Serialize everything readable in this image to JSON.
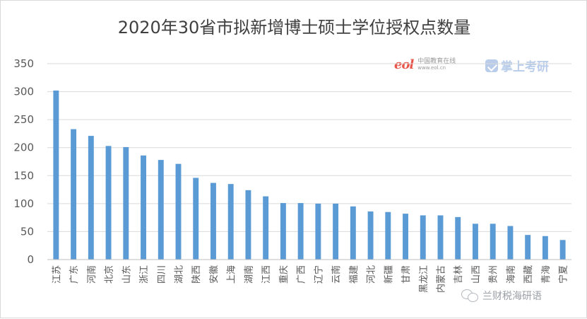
{
  "chart_data": {
    "type": "bar",
    "title": "2020年30省市拟新增博士硕士学位授权点数量",
    "xlabel": "",
    "ylabel": "",
    "ylim": [
      0,
      350
    ],
    "yticks": [
      0,
      50,
      100,
      150,
      200,
      250,
      300,
      350
    ],
    "grid": true,
    "legend": "none",
    "bar_color": "#5b9bd5",
    "categories": [
      "江苏",
      "广东",
      "河南",
      "北京",
      "山东",
      "浙江",
      "四川",
      "湖北",
      "陕西",
      "安徽",
      "上海",
      "湖南",
      "江西",
      "重庆",
      "广西",
      "辽宁",
      "云南",
      "福建",
      "河北",
      "新疆",
      "甘肃",
      "黑龙江",
      "内蒙古",
      "吉林",
      "山西",
      "贵州",
      "海南",
      "西藏",
      "青海",
      "宁夏"
    ],
    "values": [
      302,
      233,
      221,
      203,
      201,
      186,
      178,
      171,
      146,
      137,
      135,
      124,
      113,
      101,
      101,
      100,
      100,
      95,
      86,
      85,
      82,
      79,
      79,
      76,
      64,
      64,
      60,
      44,
      42,
      35
    ]
  },
  "logos": {
    "eol_mark": "eol",
    "eol_name": "中国教育在线",
    "eol_url": "www.eol.cn",
    "zsky_name": "掌上考研"
  },
  "watermark": {
    "text": "兰财税海研语"
  }
}
